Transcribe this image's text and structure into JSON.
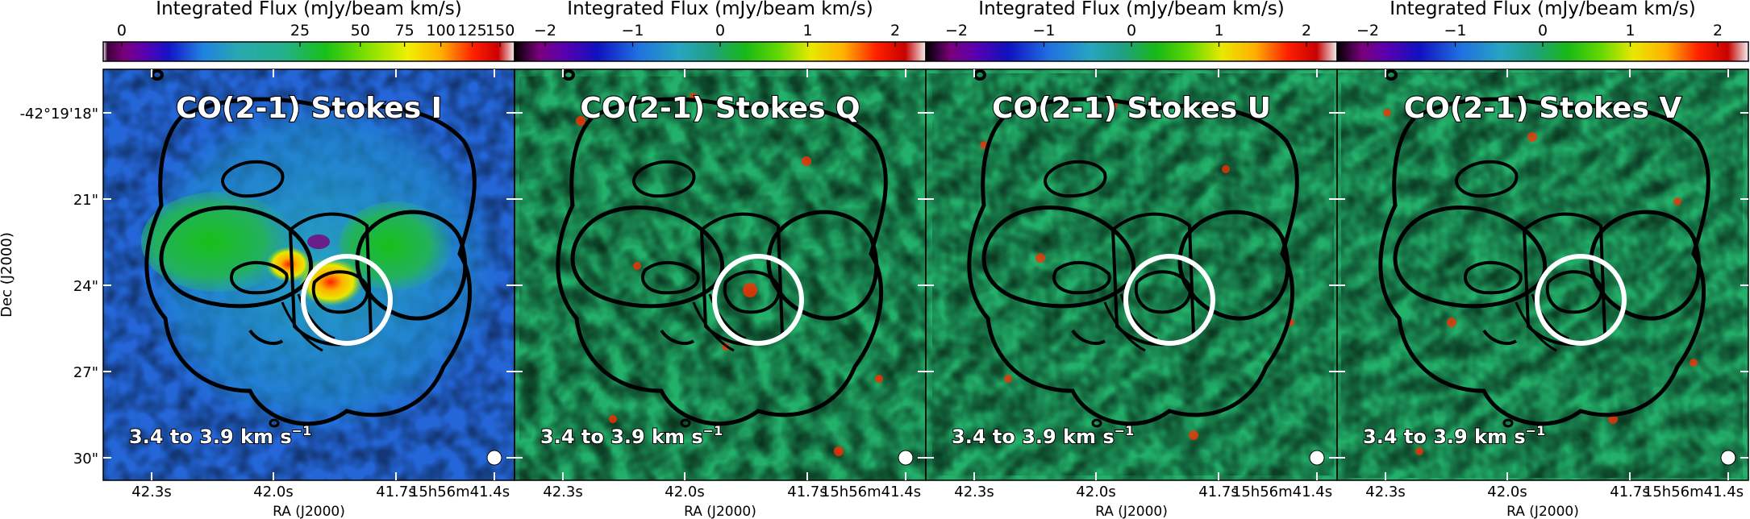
{
  "figure": {
    "ylabel": "Dec (J2000)",
    "xlabel": "RA (J2000)",
    "ytick_labels": [
      "-42°19'18\"",
      "21\"",
      "24\"",
      "27\"",
      "30\""
    ],
    "xtick_labels": [
      "42.3s",
      "42.0s",
      "41.7s",
      "15h56m41.4s"
    ],
    "colorbar_label": "Integrated Flux (mJy/beam km/s)",
    "velocity_label": "3.4 to 3.9 km s",
    "velocity_unit_exp": "−1"
  },
  "colors": {
    "contour": "#000000",
    "circle": "#ffffff",
    "beam": "#ffffff"
  },
  "chart_data": [
    {
      "type": "heatmap",
      "title": "CO(2-1) Stokes I",
      "colorbar_ticks": [
        "0",
        "25",
        "50",
        "75",
        "100",
        "125",
        "150"
      ],
      "colorbar_tick_values": [
        0,
        25,
        50,
        75,
        100,
        125,
        150
      ],
      "colormap_stretch": "nonlinear",
      "ylim_arcsec": [
        31.1,
        17.2
      ],
      "xlim_s": [
        42.48,
        41.27
      ],
      "grid": false
    },
    {
      "type": "heatmap",
      "title": "CO(2-1) Stokes Q",
      "colorbar_ticks": [
        "−2",
        "−1",
        "0",
        "1",
        "2"
      ],
      "colorbar_tick_values": [
        -2,
        -1,
        0,
        1,
        2
      ],
      "colormap_stretch": "linear",
      "ylim_arcsec": [
        31.1,
        17.2
      ],
      "xlim_s": [
        42.48,
        41.27
      ],
      "grid": false
    },
    {
      "type": "heatmap",
      "title": "CO(2-1) Stokes U",
      "colorbar_ticks": [
        "−2",
        "−1",
        "0",
        "1",
        "2"
      ],
      "colorbar_tick_values": [
        -2,
        -1,
        0,
        1,
        2
      ],
      "colormap_stretch": "linear",
      "ylim_arcsec": [
        31.1,
        17.2
      ],
      "xlim_s": [
        42.48,
        41.27
      ],
      "grid": false
    },
    {
      "type": "heatmap",
      "title": "CO(2-1) Stokes V",
      "colorbar_ticks": [
        "−2",
        "−1",
        "0",
        "1",
        "2"
      ],
      "colorbar_tick_values": [
        -2,
        -1,
        0,
        1,
        2
      ],
      "colormap_stretch": "linear",
      "ylim_arcsec": [
        31.1,
        17.2
      ],
      "xlim_s": [
        42.48,
        41.27
      ],
      "grid": false
    }
  ]
}
